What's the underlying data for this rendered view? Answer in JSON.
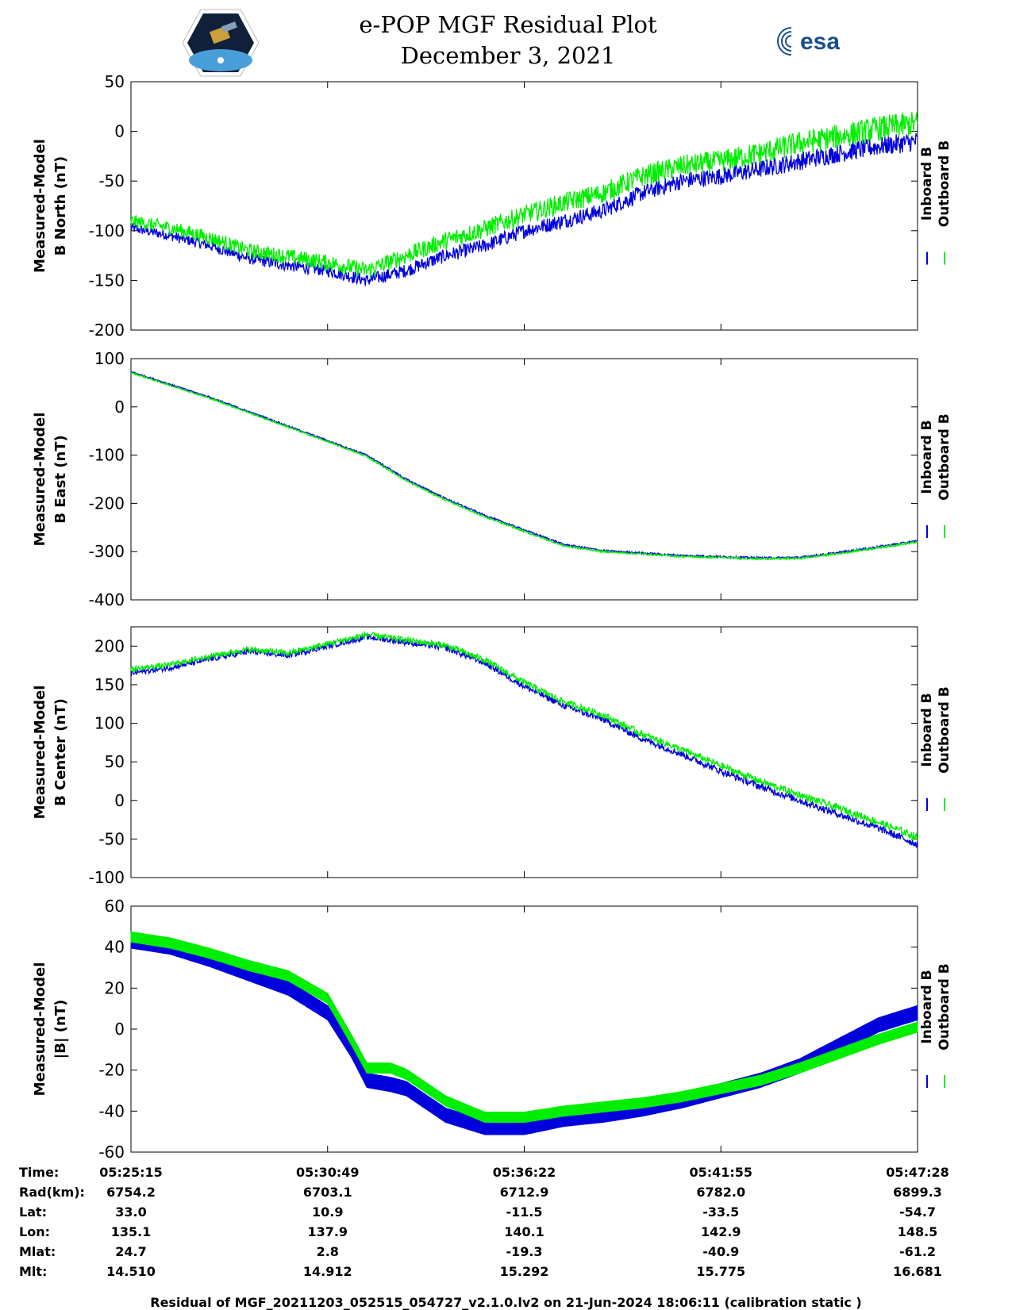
{
  "header": {
    "title_line1": "e-POP MGF Residual Plot",
    "title_line2": "December 3, 2021",
    "logo_left": "cassiope-mission-patch",
    "logo_right_text": "esa"
  },
  "chart_data": [
    {
      "type": "line",
      "ylabel": [
        "Measured-Model",
        "B North (nT)"
      ],
      "ylim": [
        -200,
        50
      ],
      "yticks": [
        50,
        0,
        -50,
        -100,
        -150,
        -200
      ],
      "series": [
        {
          "name": "Inboard B",
          "color": "#0000dd",
          "x": [
            0,
            0.05,
            0.1,
            0.15,
            0.2,
            0.25,
            0.3,
            0.35,
            0.4,
            0.45,
            0.5,
            0.55,
            0.6,
            0.65,
            0.7,
            0.75,
            0.8,
            0.85,
            0.9,
            0.95,
            1.0
          ],
          "y": [
            -97,
            -105,
            -115,
            -128,
            -135,
            -140,
            -150,
            -140,
            -125,
            -115,
            -100,
            -90,
            -80,
            -62,
            -50,
            -45,
            -38,
            -30,
            -22,
            -15,
            -10
          ],
          "noise": 10
        },
        {
          "name": "Outboard B",
          "color": "#00ee00",
          "x": [
            0,
            0.05,
            0.1,
            0.15,
            0.2,
            0.25,
            0.3,
            0.35,
            0.4,
            0.45,
            0.5,
            0.55,
            0.6,
            0.65,
            0.7,
            0.75,
            0.8,
            0.85,
            0.9,
            0.95,
            1.0
          ],
          "y": [
            -90,
            -97,
            -107,
            -120,
            -126,
            -132,
            -140,
            -125,
            -110,
            -98,
            -84,
            -72,
            -62,
            -45,
            -35,
            -30,
            -22,
            -12,
            -5,
            3,
            8
          ],
          "noise": 13
        }
      ]
    },
    {
      "type": "line",
      "ylabel": [
        "Measured-Model",
        "B East (nT)"
      ],
      "ylim": [
        -400,
        100
      ],
      "yticks": [
        100,
        0,
        -100,
        -200,
        -300,
        -400
      ],
      "series": [
        {
          "name": "Inboard B",
          "color": "#0000dd",
          "x": [
            0,
            0.1,
            0.2,
            0.25,
            0.3,
            0.35,
            0.4,
            0.45,
            0.5,
            0.55,
            0.6,
            0.7,
            0.8,
            0.85,
            0.9,
            0.95,
            1.0
          ],
          "y": [
            73,
            20,
            -40,
            -70,
            -100,
            -150,
            -190,
            -225,
            -255,
            -285,
            -298,
            -308,
            -313,
            -312,
            -302,
            -290,
            -278
          ],
          "noise": 3
        },
        {
          "name": "Outboard B",
          "color": "#00ee00",
          "x": [
            0,
            0.1,
            0.2,
            0.25,
            0.3,
            0.35,
            0.4,
            0.45,
            0.5,
            0.55,
            0.6,
            0.7,
            0.8,
            0.85,
            0.9,
            0.95,
            1.0
          ],
          "y": [
            71,
            18,
            -42,
            -72,
            -103,
            -153,
            -193,
            -228,
            -258,
            -288,
            -300,
            -310,
            -315,
            -314,
            -304,
            -292,
            -280
          ],
          "noise": 3
        }
      ]
    },
    {
      "type": "line",
      "ylabel": [
        "Measured-Model",
        "B Center (nT)"
      ],
      "ylim": [
        -100,
        225
      ],
      "yticks": [
        200,
        150,
        100,
        50,
        0,
        -50,
        -100
      ],
      "series": [
        {
          "name": "Inboard B",
          "color": "#0000dd",
          "x": [
            0,
            0.05,
            0.1,
            0.15,
            0.2,
            0.25,
            0.3,
            0.35,
            0.4,
            0.45,
            0.5,
            0.55,
            0.6,
            0.65,
            0.7,
            0.75,
            0.8,
            0.85,
            0.9,
            0.95,
            1.0
          ],
          "y": [
            165,
            172,
            183,
            193,
            188,
            200,
            212,
            205,
            198,
            178,
            148,
            123,
            105,
            80,
            60,
            38,
            18,
            0,
            -18,
            -36,
            -57
          ],
          "noise": 7
        },
        {
          "name": "Outboard B",
          "color": "#00ee00",
          "x": [
            0,
            0.05,
            0.1,
            0.15,
            0.2,
            0.25,
            0.3,
            0.35,
            0.4,
            0.45,
            0.5,
            0.55,
            0.6,
            0.65,
            0.7,
            0.75,
            0.8,
            0.85,
            0.9,
            0.95,
            1.0
          ],
          "y": [
            170,
            176,
            187,
            196,
            191,
            203,
            215,
            208,
            201,
            182,
            153,
            128,
            111,
            86,
            66,
            45,
            25,
            7,
            -10,
            -28,
            -48
          ],
          "noise": 7
        }
      ]
    },
    {
      "type": "line",
      "ylabel": [
        "Measured-Model",
        "|B| (nT)"
      ],
      "ylim": [
        -60,
        60
      ],
      "yticks": [
        60,
        40,
        20,
        0,
        -20,
        -40,
        -60
      ],
      "series": [
        {
          "name": "Inboard B",
          "color": "#0000dd",
          "x": [
            0,
            0.05,
            0.1,
            0.15,
            0.2,
            0.25,
            0.28,
            0.3,
            0.33,
            0.35,
            0.4,
            0.45,
            0.5,
            0.55,
            0.6,
            0.65,
            0.7,
            0.75,
            0.8,
            0.85,
            0.9,
            0.95,
            1.0
          ],
          "y": [
            43,
            40,
            34,
            27,
            20,
            8,
            -10,
            -25,
            -27,
            -29,
            -42,
            -48,
            -48,
            -44,
            -42,
            -39,
            -35,
            -30,
            -25,
            -18,
            -8,
            2,
            8
          ],
          "noise": 0,
          "band": 7
        },
        {
          "name": "Outboard B",
          "color": "#00ee00",
          "x": [
            0,
            0.05,
            0.1,
            0.15,
            0.2,
            0.25,
            0.28,
            0.3,
            0.33,
            0.35,
            0.4,
            0.45,
            0.5,
            0.55,
            0.6,
            0.65,
            0.7,
            0.75,
            0.8,
            0.85,
            0.9,
            0.95,
            1.0
          ],
          "y": [
            45,
            42,
            37,
            31,
            26,
            15,
            -5,
            -19,
            -19,
            -22,
            -35,
            -43,
            -43,
            -40,
            -38,
            -36,
            -33,
            -29,
            -25,
            -19,
            -12,
            -5,
            1
          ],
          "noise": 0,
          "band": 5
        }
      ]
    }
  ],
  "ephemeris": {
    "labels": [
      "Time:",
      "Rad(km):",
      "Lat:",
      "Lon:",
      "Mlat:",
      "Mlt:"
    ],
    "columns": [
      [
        "05:25:15",
        "6754.2",
        "33.0",
        "135.1",
        "24.7",
        "14.510"
      ],
      [
        "05:30:49",
        "6703.1",
        "10.9",
        "137.9",
        "2.8",
        "14.912"
      ],
      [
        "05:36:22",
        "6712.9",
        "-11.5",
        "140.1",
        "-19.3",
        "15.292"
      ],
      [
        "05:41:55",
        "6782.0",
        "-33.5",
        "142.9",
        "-40.9",
        "15.775"
      ],
      [
        "05:47:28",
        "6899.3",
        "-54.7",
        "148.5",
        "-61.2",
        "16.681"
      ]
    ]
  },
  "footer": "Residual of MGF_20211203_052515_054727_v2.1.0.lv2 on 21-Jun-2024 18:06:11 (calibration static )"
}
